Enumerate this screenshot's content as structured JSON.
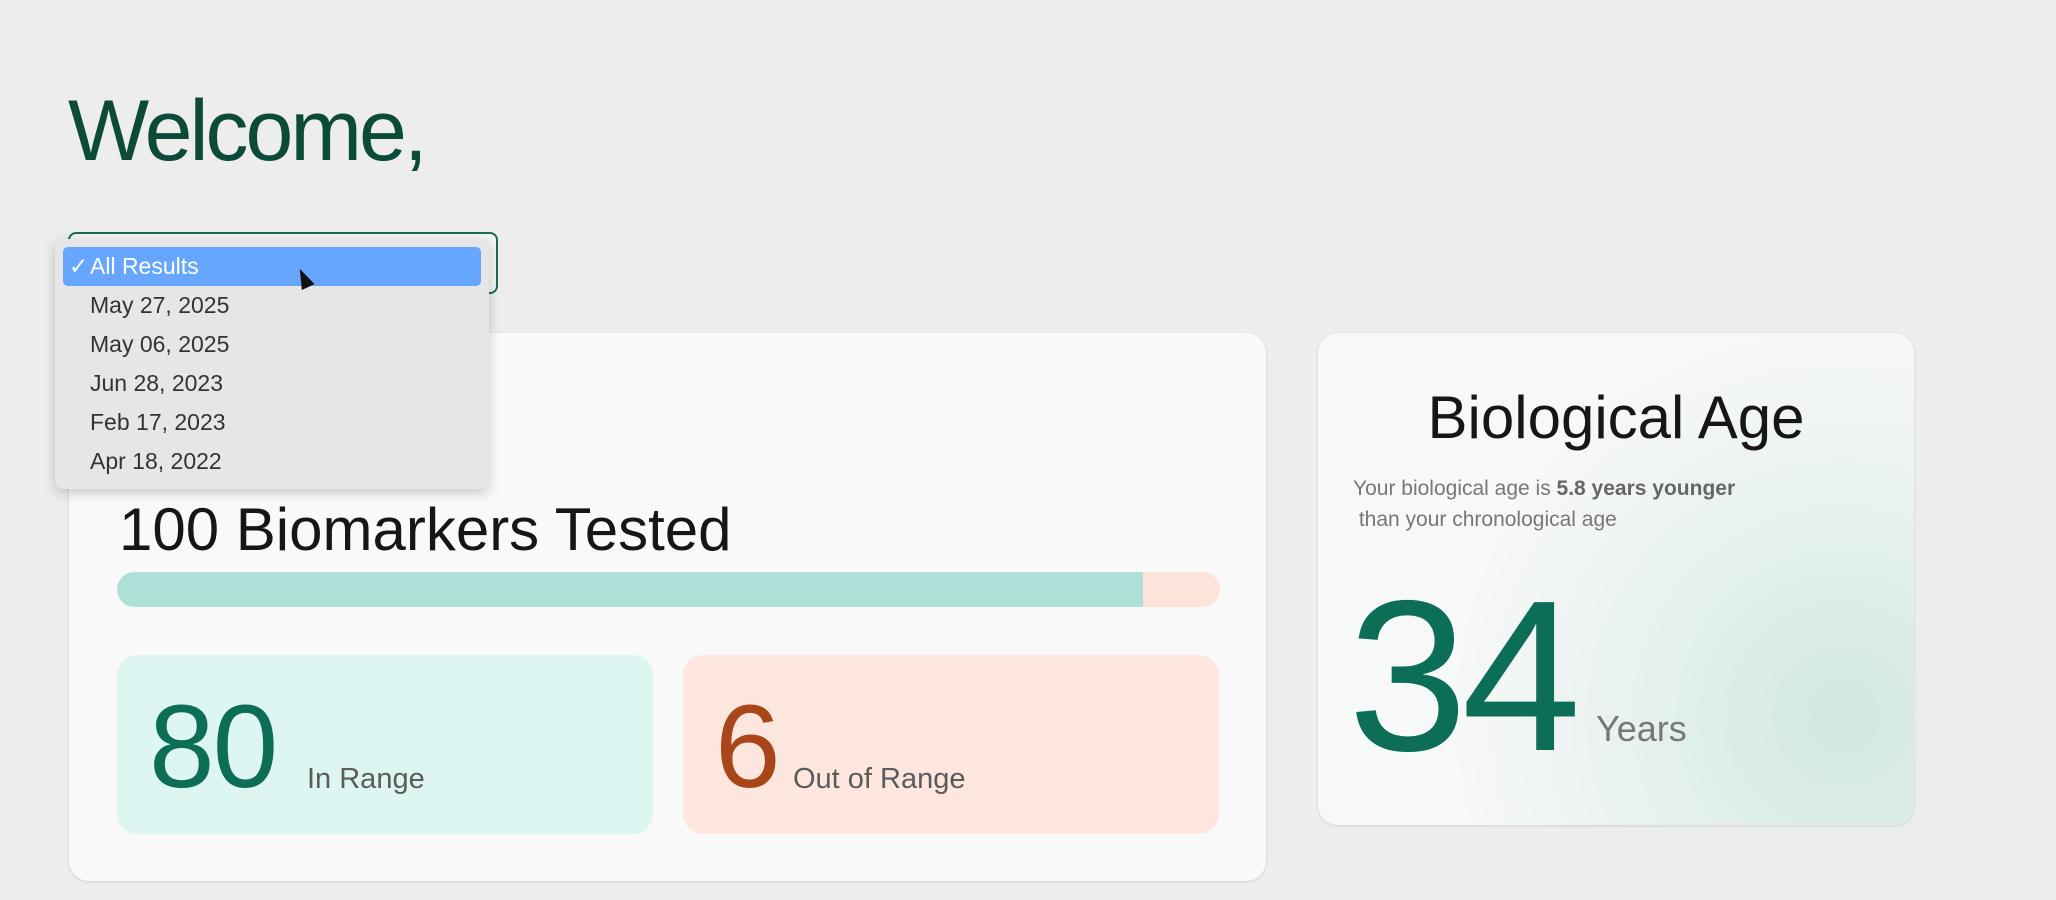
{
  "header": {
    "title": "Welcome,"
  },
  "results_select": {
    "options": [
      "All Results",
      "May 27, 2025",
      "May 06, 2025",
      "Jun 28, 2023",
      "Feb 17, 2023",
      "Apr 18, 2022"
    ],
    "selected": "All Results",
    "check": "✓"
  },
  "biomarkers": {
    "title": "100 Biomarkers Tested",
    "in_range_fraction": 0.93,
    "in_range": {
      "value": "80",
      "label": "In Range"
    },
    "out_of_range": {
      "value": "6",
      "label": "Out of Range"
    }
  },
  "bio_age": {
    "title": "Biological Age",
    "sub_pre": "Your biological age is ",
    "sub_bold": "5.8 years younger",
    "sub_post": " than your chronological age",
    "value": "34",
    "unit": "Years"
  },
  "colors": {
    "accent": "#0d6e58",
    "out_of_range": "#a8461a",
    "selected_option": "#66a6fe"
  }
}
